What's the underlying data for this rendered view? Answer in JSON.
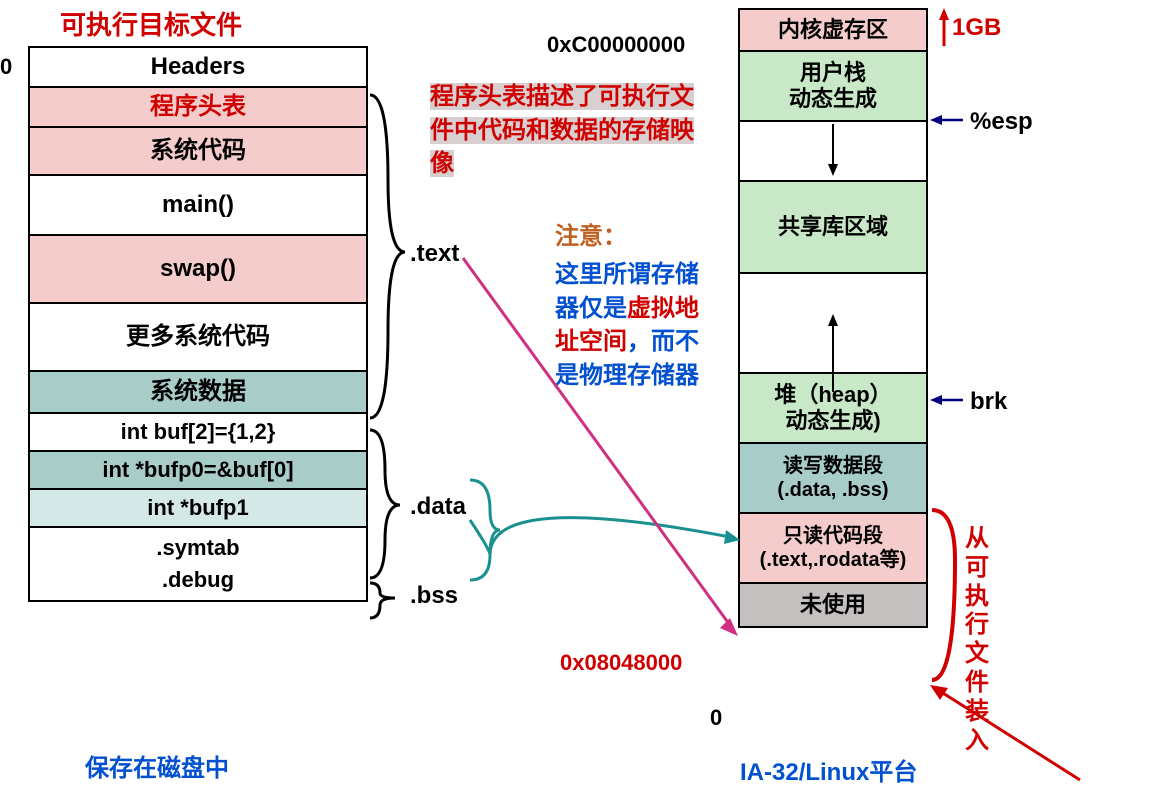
{
  "left": {
    "title": "可执行目标文件",
    "bottom_caption": "保存在磁盘中",
    "zero": "0",
    "rows": [
      {
        "text": "Headers",
        "bg": "",
        "h": 40,
        "fs": 24
      },
      {
        "text": "程序头表",
        "bg": "pink-bg",
        "h": 40,
        "fs": 24,
        "color": "#d00000"
      },
      {
        "text": "系统代码",
        "bg": "pink-bg",
        "h": 48,
        "fs": 24
      },
      {
        "text": "main()",
        "bg": "",
        "h": 60,
        "fs": 24
      },
      {
        "text": "swap()",
        "bg": "pink-bg",
        "h": 68,
        "fs": 24
      },
      {
        "text": "更多系统代码",
        "bg": "",
        "h": 68,
        "fs": 24
      },
      {
        "text": "系统数据",
        "bg": "teal-bg",
        "h": 42,
        "fs": 24
      },
      {
        "text": "int buf[2]={1,2}",
        "bg": "",
        "h": 38,
        "fs": 22
      },
      {
        "text": "int  *bufp0=&buf[0]",
        "bg": "teal-bg",
        "h": 38,
        "fs": 22
      },
      {
        "text": "int *bufp1",
        "bg": "lightblue-bg",
        "h": 38,
        "fs": 22
      },
      {
        "text": ".symtab\n.debug",
        "bg": "",
        "h": 72,
        "fs": 22
      }
    ]
  },
  "right": {
    "title": "IA-32/Linux平台",
    "zero": "0",
    "rows": [
      {
        "text": "内核虚存区",
        "bg": "pink-bg",
        "h": 42,
        "fs": 22
      },
      {
        "text": "用户栈\n动态生成",
        "bg": "green-bg",
        "h": 70,
        "fs": 22
      },
      {
        "text": "",
        "bg": "",
        "h": 60,
        "fs": 22
      },
      {
        "text": "共享库区域",
        "bg": "green-bg",
        "h": 92,
        "fs": 22
      },
      {
        "text": "",
        "bg": "",
        "h": 100,
        "fs": 22
      },
      {
        "text": "堆（heap）\n动态生成)",
        "bg": "green-bg",
        "h": 70,
        "fs": 22
      },
      {
        "text": "读写数据段\n(.data, .bss)",
        "bg": "teal-bg",
        "h": 70,
        "fs": 20
      },
      {
        "text": "只读代码段\n(.text,.rodata等)",
        "bg": "pink-bg",
        "h": 70,
        "fs": 20
      },
      {
        "text": "未使用",
        "bg": "gray-bg",
        "h": 42,
        "fs": 22
      }
    ],
    "side_label": "从可执行文件装入"
  },
  "labels": {
    "text": ".text",
    "data": ".data",
    "bss": ".bss",
    "addr_top": "0xC00000000",
    "addr_mid": "0x08048000",
    "one_gb": "1GB",
    "esp": "%esp",
    "brk": "brk"
  },
  "notes": {
    "desc": "程序头表描述了可执行文件中代码和数据的存储映像",
    "warn_title": "注意：",
    "warn_p1": "这里所谓存储器仅是",
    "warn_red": "虚拟地址空间",
    "warn_p2": "，而不是物理存储器"
  },
  "colors": {
    "red": "#d00000",
    "blue": "#0050d0",
    "orange": "#c06020",
    "pink": "#d03080",
    "teal": "#1a9090"
  }
}
